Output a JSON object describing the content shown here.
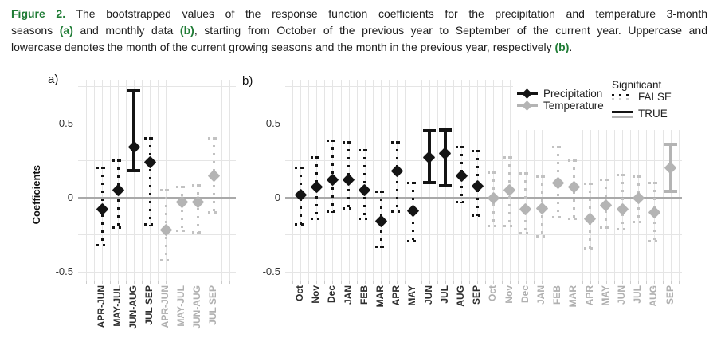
{
  "caption": {
    "lines": [
      {
        "segments": [
          {
            "text": "Figure 2.",
            "green": true
          },
          {
            "text": " The bootstrapped values of the response function coefficients for the precipitation and temperature 3-month",
            "green": false
          }
        ]
      },
      {
        "segments": [
          {
            "text": "seasons ",
            "green": false
          },
          {
            "text": "(a)",
            "green": true
          },
          {
            "text": " and monthly data ",
            "green": false
          },
          {
            "text": "(b)",
            "green": true
          },
          {
            "text": ", starting from October of the previous year to September of the current year. Uppercase and",
            "green": false
          }
        ]
      },
      {
        "segments": [
          {
            "text": "lowercase denotes the month of the current growing seasons and the month in the previous year, respectively ",
            "green": false
          },
          {
            "text": "(b)",
            "green": true
          },
          {
            "text": ".",
            "green": false
          }
        ]
      }
    ]
  },
  "legend": {
    "series": [
      {
        "label": "Precipitation",
        "color": "#141414"
      },
      {
        "label": "Temperature",
        "color": "#b4b4b4"
      }
    ],
    "significant": {
      "title": "Significant",
      "false_label": "FALSE",
      "true_label": "TRUE"
    }
  },
  "colors": {
    "precipitation": "#141414",
    "temperature": "#b4b4b4",
    "temperature_dotted": "#c2c2c2",
    "zero_line": "#a9a9a9",
    "grid": "#e5e5e5",
    "green_accent": "#1e7b34",
    "axis_text_dark": "#2e2e2e",
    "axis_text_gray": "#b0b0b0"
  },
  "chart_data": {
    "type": "scatter",
    "ylabel": "Coefficients",
    "ytick_labels": [
      "0.5",
      "0",
      "-0.5"
    ],
    "ytick_values": [
      0.5,
      0,
      -0.5
    ],
    "ylim": [
      -0.56,
      0.8
    ],
    "grid": true,
    "legend_position": "top-right",
    "panels": [
      {
        "id": "a",
        "label": "a)",
        "series": [
          {
            "name": "Precipitation",
            "points": [
              {
                "category": "APR-JUN",
                "value": -0.08,
                "lo": -0.33,
                "hi": 0.21,
                "significant": false
              },
              {
                "category": "MAY-JUL",
                "value": 0.05,
                "lo": -0.21,
                "hi": 0.26,
                "significant": false
              },
              {
                "category": "JUN-AUG",
                "value": 0.34,
                "lo": 0.17,
                "hi": 0.73,
                "significant": true
              },
              {
                "category": "JUL SEP",
                "value": 0.24,
                "lo": -0.19,
                "hi": 0.41,
                "significant": false
              }
            ]
          },
          {
            "name": "Temperature",
            "points": [
              {
                "category": "APR-JUN",
                "value": -0.22,
                "lo": -0.43,
                "hi": 0.06,
                "significant": false
              },
              {
                "category": "MAY-JUL",
                "value": -0.03,
                "lo": -0.23,
                "hi": 0.08,
                "significant": false
              },
              {
                "category": "JUN-AUG",
                "value": -0.03,
                "lo": -0.24,
                "hi": 0.09,
                "significant": false
              },
              {
                "category": "JUL SEP",
                "value": 0.15,
                "lo": -0.11,
                "hi": 0.41,
                "significant": false
              }
            ]
          }
        ]
      },
      {
        "id": "b",
        "label": "b)",
        "series": [
          {
            "name": "Precipitation",
            "points": [
              {
                "category": "Oct",
                "value": 0.02,
                "lo": -0.19,
                "hi": 0.21,
                "significant": false
              },
              {
                "category": "Nov",
                "value": 0.07,
                "lo": -0.15,
                "hi": 0.28,
                "significant": false
              },
              {
                "category": "Dec",
                "value": 0.12,
                "lo": -0.1,
                "hi": 0.39,
                "significant": false
              },
              {
                "category": "JAN",
                "value": 0.12,
                "lo": -0.08,
                "hi": 0.38,
                "significant": false
              },
              {
                "category": "FEB",
                "value": 0.05,
                "lo": -0.15,
                "hi": 0.33,
                "significant": false
              },
              {
                "category": "MAR",
                "value": -0.16,
                "lo": -0.34,
                "hi": 0.05,
                "significant": false
              },
              {
                "category": "APR",
                "value": 0.18,
                "lo": -0.1,
                "hi": 0.38,
                "significant": false
              },
              {
                "category": "MAY",
                "value": -0.09,
                "lo": -0.3,
                "hi": 0.11,
                "significant": false
              },
              {
                "category": "JUN",
                "value": 0.27,
                "lo": 0.09,
                "hi": 0.46,
                "significant": true
              },
              {
                "category": "JUL",
                "value": 0.3,
                "lo": 0.07,
                "hi": 0.47,
                "significant": true
              },
              {
                "category": "AUG",
                "value": 0.15,
                "lo": -0.04,
                "hi": 0.35,
                "significant": false
              },
              {
                "category": "SEP",
                "value": 0.08,
                "lo": -0.13,
                "hi": 0.32,
                "significant": false
              }
            ]
          },
          {
            "name": "Temperature",
            "points": [
              {
                "category": "Oct",
                "value": 0.0,
                "lo": -0.2,
                "hi": 0.18,
                "significant": false
              },
              {
                "category": "Nov",
                "value": 0.05,
                "lo": -0.2,
                "hi": 0.28,
                "significant": false
              },
              {
                "category": "Dec",
                "value": -0.08,
                "lo": -0.25,
                "hi": 0.17,
                "significant": false
              },
              {
                "category": "JAN",
                "value": -0.07,
                "lo": -0.27,
                "hi": 0.15,
                "significant": false
              },
              {
                "category": "FEB",
                "value": 0.1,
                "lo": -0.14,
                "hi": 0.35,
                "significant": false
              },
              {
                "category": "MAR",
                "value": 0.07,
                "lo": -0.15,
                "hi": 0.26,
                "significant": false
              },
              {
                "category": "APR",
                "value": -0.14,
                "lo": -0.35,
                "hi": 0.1,
                "significant": false
              },
              {
                "category": "MAY",
                "value": -0.05,
                "lo": -0.21,
                "hi": 0.13,
                "significant": false
              },
              {
                "category": "JUN",
                "value": -0.08,
                "lo": -0.22,
                "hi": 0.16,
                "significant": false
              },
              {
                "category": "JUL",
                "value": 0.0,
                "lo": -0.17,
                "hi": 0.15,
                "significant": false
              },
              {
                "category": "AUG",
                "value": -0.1,
                "lo": -0.3,
                "hi": 0.11,
                "significant": false
              },
              {
                "category": "SEP",
                "value": 0.2,
                "lo": 0.03,
                "hi": 0.37,
                "significant": true
              }
            ]
          }
        ]
      }
    ]
  }
}
